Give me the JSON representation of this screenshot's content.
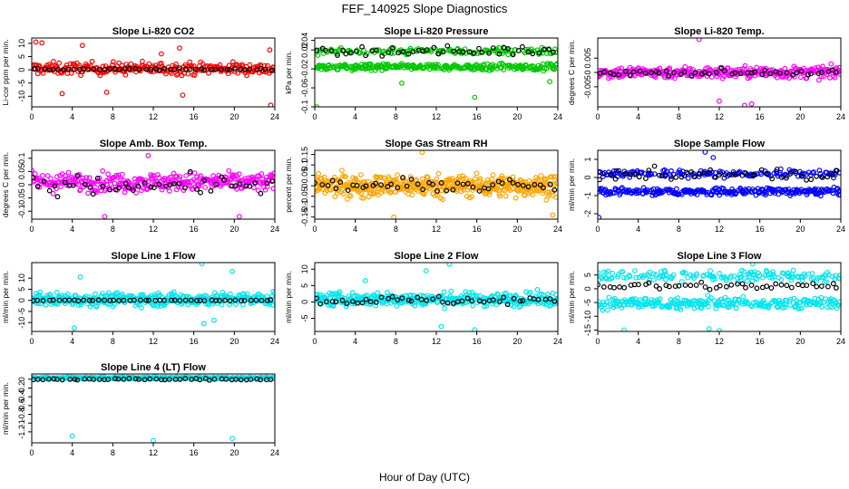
{
  "figure": {
    "title": "FEF_140925  Slope Diagnostics",
    "xlabel": "Hour of Day (UTC)"
  },
  "chart_data": [
    {
      "type": "scatter",
      "title": "Slope Li-820 CO2",
      "ylabel": "Li-cor ppm per min.",
      "xlim": [
        0,
        24
      ],
      "ylim": [
        -14,
        12
      ],
      "xticks": [
        0,
        4,
        8,
        12,
        16,
        20,
        24
      ],
      "yticks": [
        -10,
        -5,
        0,
        5,
        10
      ],
      "series": [
        {
          "color": "#ff0000",
          "pattern": "band",
          "center": 0.5,
          "spread": 4,
          "points": 260,
          "outliers": [
            [
              0.4,
              10.5
            ],
            [
              1.0,
              10.2
            ],
            [
              5.0,
              9.2
            ],
            [
              12.8,
              6.0
            ],
            [
              14.6,
              8.2
            ],
            [
              23.5,
              7.5
            ],
            [
              3.0,
              -9.0
            ],
            [
              7.4,
              -8.5
            ],
            [
              14.9,
              -9.6
            ],
            [
              23.6,
              -13.4
            ]
          ]
        },
        {
          "color": "#000000",
          "pattern": "flat",
          "center": 0.2,
          "spread": 0.6,
          "points": 48
        }
      ]
    },
    {
      "type": "scatter",
      "title": "Slope Li-820 Pressure",
      "ylabel": "kPa per min.",
      "xlim": [
        0,
        24
      ],
      "ylim": [
        -0.1,
        0.045
      ],
      "xticks": [
        0,
        4,
        8,
        12,
        16,
        20,
        24
      ],
      "yticks": [
        -0.1,
        -0.06,
        -0.02,
        0.02,
        0.04
      ],
      "series": [
        {
          "color": "#00c800",
          "pattern": "split",
          "center": -0.005,
          "spread": 0.02,
          "points": 420,
          "outliers": [
            [
              0.2,
              -0.1
            ],
            [
              15.8,
              -0.08
            ],
            [
              23.2,
              -0.047
            ],
            [
              8.6,
              -0.05
            ]
          ]
        },
        {
          "color": "#000000",
          "pattern": "flat",
          "center": 0.018,
          "spread": 0.016,
          "points": 48
        }
      ]
    },
    {
      "type": "scatter",
      "title": "Slope Li-820 Temp.",
      "ylabel": "degrees C per min.",
      "xlim": [
        0,
        24
      ],
      "ylim": [
        -0.012,
        0.012
      ],
      "xticks": [
        0,
        4,
        8,
        12,
        16,
        20,
        24
      ],
      "yticks": [
        -0.005,
        0.0,
        0.005
      ],
      "series": [
        {
          "color": "#ff00ff",
          "pattern": "band",
          "center": 0.0,
          "spread": 0.0035,
          "points": 320,
          "outliers": [
            [
              10.0,
              0.0115
            ],
            [
              12.0,
              -0.01
            ],
            [
              14.5,
              -0.0115
            ],
            [
              15.2,
              -0.011
            ]
          ]
        },
        {
          "color": "#000000",
          "pattern": "flat",
          "center": 0.0,
          "spread": 0.0018,
          "points": 48
        }
      ]
    },
    {
      "type": "scatter",
      "title": "Slope Amb. Box Temp.",
      "ylabel": "degrees C per min.",
      "xlim": [
        0,
        24
      ],
      "ylim": [
        -0.13,
        0.13
      ],
      "xticks": [
        0,
        4,
        8,
        12,
        16,
        20,
        24
      ],
      "yticks": [
        -0.1,
        -0.05,
        0.0,
        0.05,
        0.1
      ],
      "series": [
        {
          "color": "#ff00ff",
          "pattern": "band",
          "center": 0.01,
          "spread": 0.06,
          "points": 320,
          "outliers": [
            [
              11.5,
              0.11
            ],
            [
              20.5,
              -0.12
            ],
            [
              7.2,
              -0.12
            ]
          ]
        },
        {
          "color": "#000000",
          "pattern": "flat",
          "center": 0.0,
          "spread": 0.06,
          "points": 48
        }
      ]
    },
    {
      "type": "scatter",
      "title": "Slope Gas Stream RH",
      "ylabel": "percent per min.",
      "xlim": [
        0,
        24
      ],
      "ylim": [
        -0.16,
        0.17
      ],
      "xticks": [
        0,
        4,
        8,
        12,
        16,
        20,
        24
      ],
      "yticks": [
        -0.15,
        -0.1,
        -0.05,
        0.0,
        0.05,
        0.1,
        0.15
      ],
      "series": [
        {
          "color": "#ffa500",
          "pattern": "band",
          "center": 0.0,
          "spread": 0.09,
          "points": 460,
          "outliers": [
            [
              10.6,
              0.16
            ],
            [
              7.8,
              -0.15
            ],
            [
              23.5,
              -0.14
            ]
          ]
        },
        {
          "color": "#000000",
          "pattern": "flat",
          "center": 0.0,
          "spread": 0.05,
          "points": 48
        }
      ]
    },
    {
      "type": "scatter",
      "title": "Slope Sample Flow",
      "ylabel": "ml/min per min.",
      "xlim": [
        0,
        24
      ],
      "ylim": [
        -2.3,
        1.5
      ],
      "xticks": [
        0,
        4,
        8,
        12,
        16,
        20,
        24
      ],
      "yticks": [
        -2,
        -1,
        0,
        1
      ],
      "series": [
        {
          "color": "#0000ff",
          "pattern": "split",
          "center": -0.45,
          "spread": 0.6,
          "points": 420,
          "outliers": [
            [
              0.1,
              -2.2
            ],
            [
              10.6,
              1.4
            ],
            [
              11.4,
              1.1
            ]
          ]
        },
        {
          "color": "#000000",
          "pattern": "flat",
          "center": 0.15,
          "spread": 0.55,
          "points": 48
        }
      ]
    },
    {
      "type": "scatter",
      "title": "Slope Line 1 Flow",
      "ylabel": "ml/min per min.",
      "xlim": [
        0,
        24
      ],
      "ylim": [
        -14,
        17
      ],
      "xticks": [
        0,
        4,
        8,
        12,
        16,
        20,
        24
      ],
      "yticks": [
        -10,
        -5,
        0,
        5,
        10
      ],
      "series": [
        {
          "color": "#00e5ee",
          "pattern": "band",
          "center": 0.5,
          "spread": 5,
          "points": 380,
          "outliers": [
            [
              4.8,
              10.5
            ],
            [
              16.8,
              16.5
            ],
            [
              19.8,
              13.0
            ],
            [
              4.2,
              -12.5
            ],
            [
              17.0,
              -10.5
            ],
            [
              18.0,
              -9.0
            ]
          ]
        },
        {
          "color": "#000000",
          "pattern": "flat",
          "center": 0.0,
          "spread": 0.3,
          "points": 48
        }
      ]
    },
    {
      "type": "scatter",
      "title": "Slope Line 2 Flow",
      "ylabel": "ml/min per min.",
      "xlim": [
        0,
        24
      ],
      "ylim": [
        -9,
        12
      ],
      "xticks": [
        0,
        4,
        8,
        12,
        16,
        20,
        24
      ],
      "yticks": [
        -5,
        0,
        5,
        10
      ],
      "series": [
        {
          "color": "#00e5ee",
          "pattern": "band",
          "center": 0.8,
          "spread": 3.5,
          "points": 380,
          "outliers": [
            [
              13.3,
              11.5
            ],
            [
              11.0,
              9.5
            ],
            [
              5.0,
              6.5
            ],
            [
              15.8,
              -8.5
            ],
            [
              12.5,
              -7.5
            ]
          ]
        },
        {
          "color": "#000000",
          "pattern": "flat",
          "center": 0.5,
          "spread": 2.2,
          "points": 48
        }
      ]
    },
    {
      "type": "scatter",
      "title": "Slope Line 3 Flow",
      "ylabel": "ml/min per min.",
      "xlim": [
        0,
        24
      ],
      "ylim": [
        -15.5,
        9.5
      ],
      "xticks": [
        0,
        4,
        8,
        12,
        16,
        20,
        24
      ],
      "yticks": [
        -15,
        -10,
        -5,
        0,
        5
      ],
      "series": [
        {
          "color": "#00e5ee",
          "pattern": "split",
          "center": -2.0,
          "spread": 6,
          "points": 420,
          "outliers": [
            [
              15.3,
              9.0
            ],
            [
              2.6,
              -15.0
            ],
            [
              11.0,
              -14.5
            ],
            [
              12.0,
              -15.2
            ]
          ]
        },
        {
          "color": "#000000",
          "pattern": "flat",
          "center": 1.0,
          "spread": 2.5,
          "points": 48
        }
      ]
    },
    {
      "type": "scatter",
      "title": "Slope Line 4 (LT) Flow",
      "ylabel": "ml/min per min.",
      "xlim": [
        0,
        24
      ],
      "ylim": [
        -1.45,
        0.12
      ],
      "xticks": [
        0,
        4,
        8,
        12,
        16,
        20,
        24
      ],
      "yticks": [
        -1.2,
        -1.0,
        -0.8,
        -0.6,
        -0.4,
        -0.2,
        0.0
      ],
      "series": [
        {
          "color": "#00e5ee",
          "pattern": "band",
          "center": 0.03,
          "spread": 0.04,
          "points": 360,
          "outliers": [
            [
              4.0,
              -1.3
            ],
            [
              12.0,
              -1.4
            ],
            [
              19.8,
              -1.35
            ]
          ]
        },
        {
          "color": "#000000",
          "pattern": "flat",
          "center": 0.0,
          "spread": 0.03,
          "points": 48
        }
      ]
    }
  ]
}
